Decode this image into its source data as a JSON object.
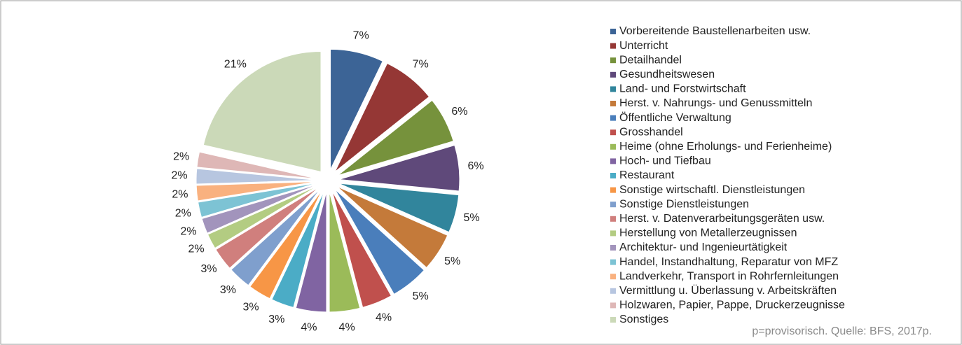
{
  "chart_data": {
    "type": "pie",
    "categories": [
      "Vorbereitende Baustellenarbeiten usw.",
      "Unterricht",
      "Detailhandel",
      "Gesundheitswesen",
      "Land- und Forstwirtschaft",
      "Herst. v. Nahrungs- und Genussmitteln",
      "Öffentliche Verwaltung",
      "Grosshandel",
      "Heime (ohne Erholungs- und Ferienheime)",
      "Hoch- und Tiefbau",
      "Restaurant",
      "Sonstige wirtschaftl. Dienstleistungen",
      "Sonstige Dienstleistungen",
      "Herst. v. Datenverarbeitungsgeräten usw.",
      "Herstellung von Metallerzeugnissen",
      "Architektur- und Ingenieurtätigkeit",
      "Handel, Instandhaltung, Reparatur von MFZ",
      "Landverkehr, Transport in Rohrfernleitungen",
      "Vermittlung u. Überlassung v. Arbeitskräften",
      "Holzwaren, Papier, Pappe, Druckerzeugnisse",
      "Sonstiges"
    ],
    "values": [
      7,
      7,
      6,
      6,
      5,
      5,
      5,
      4,
      4,
      4,
      3,
      3,
      3,
      3,
      2,
      2,
      2,
      2,
      2,
      2,
      21
    ],
    "value_labels": [
      "7%",
      "7%",
      "6%",
      "6%",
      "5%",
      "5%",
      "5%",
      "4%",
      "4%",
      "4%",
      "3%",
      "3%",
      "3%",
      "3%",
      "2%",
      "2%",
      "2%",
      "2%",
      "2%",
      "2%",
      "21%"
    ],
    "colors": [
      "#3c6496",
      "#953735",
      "#76923c",
      "#5f497a",
      "#31859c",
      "#c47a3a",
      "#4a7ebb",
      "#c0504d",
      "#9bbb59",
      "#8064a2",
      "#4bacc6",
      "#f79646",
      "#7f9fcd",
      "#d07f7d",
      "#b3cc82",
      "#a294bc",
      "#7dc3d4",
      "#f9b17f",
      "#b7c6e0",
      "#deb7b6",
      "#cbd9b8"
    ],
    "legend": "right",
    "note": "p=provisorisch. Quelle: BFS, 2017p."
  }
}
